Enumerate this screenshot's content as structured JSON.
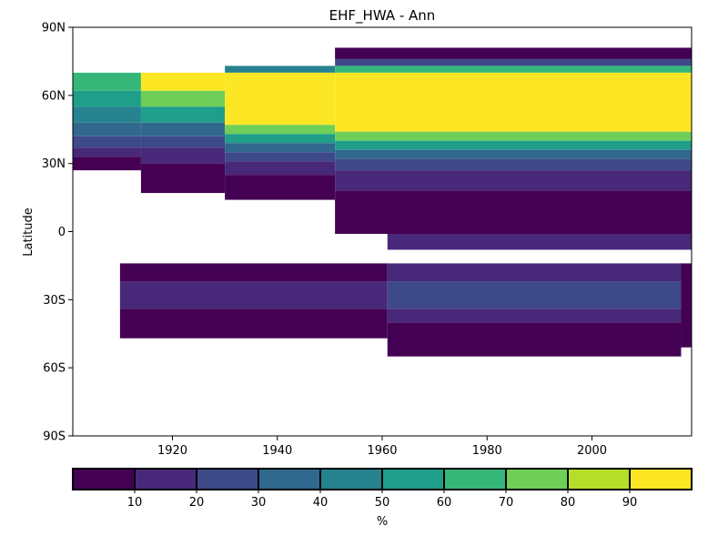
{
  "chart_data": {
    "type": "heatmap",
    "title": "EHF_HWA - Ann",
    "xlabel": "",
    "ylabel": "Latitude",
    "xlim": [
      1901,
      2019
    ],
    "ylim": [
      -90,
      90
    ],
    "xticks": [
      1920,
      1940,
      1960,
      1980,
      2000
    ],
    "yticks": [
      {
        "value": 90,
        "label": "90N"
      },
      {
        "value": 60,
        "label": "60N"
      },
      {
        "value": 30,
        "label": "30N"
      },
      {
        "value": 0,
        "label": "0"
      },
      {
        "value": -30,
        "label": "30S"
      },
      {
        "value": -60,
        "label": "60S"
      },
      {
        "value": -90,
        "label": "90S"
      }
    ],
    "grid": false,
    "colorbar": {
      "label": "%",
      "orientation": "horizontal",
      "position": "bottom",
      "ticks": [
        10,
        20,
        30,
        40,
        50,
        60,
        70,
        80,
        90
      ],
      "range": [
        0,
        100
      ],
      "colors": [
        "#440154",
        "#482878",
        "#3e4989",
        "#31688e",
        "#26828e",
        "#1f9e89",
        "#35b779",
        "#6ece58",
        "#b5de2b",
        "#fde725"
      ]
    },
    "regions": [
      {
        "x": [
          1901,
          1914
        ],
        "y": [
          27,
          70
        ],
        "bands": [
          [
            62,
            70,
            6
          ],
          [
            55,
            62,
            5
          ],
          [
            48,
            55,
            4
          ],
          [
            42,
            48,
            3
          ],
          [
            37,
            42,
            2
          ],
          [
            33,
            37,
            1
          ],
          [
            27,
            33,
            0
          ]
        ]
      },
      {
        "x": [
          1914,
          1930
        ],
        "y": [
          17,
          70
        ],
        "bands": [
          [
            62,
            70,
            9
          ],
          [
            55,
            62,
            7
          ],
          [
            48,
            55,
            5
          ],
          [
            42,
            48,
            3
          ],
          [
            37,
            42,
            2
          ],
          [
            30,
            37,
            1
          ],
          [
            17,
            30,
            0
          ]
        ]
      },
      {
        "x": [
          1930,
          1951
        ],
        "y": [
          14,
          73
        ],
        "bands": [
          [
            70,
            73,
            4
          ],
          [
            47,
            70,
            9
          ],
          [
            43,
            47,
            7
          ],
          [
            39,
            43,
            5
          ],
          [
            35,
            39,
            3
          ],
          [
            31,
            35,
            2
          ],
          [
            25,
            31,
            1
          ],
          [
            14,
            25,
            0
          ]
        ]
      },
      {
        "x": [
          1951,
          2019
        ],
        "y": [
          -1,
          81
        ],
        "bands": [
          [
            76,
            81,
            0
          ],
          [
            73,
            76,
            2
          ],
          [
            70,
            73,
            6
          ],
          [
            44,
            70,
            9
          ],
          [
            40,
            44,
            7
          ],
          [
            36,
            40,
            5
          ],
          [
            32,
            36,
            3
          ],
          [
            27,
            32,
            2
          ],
          [
            18,
            27,
            1
          ],
          [
            -1,
            18,
            0
          ]
        ]
      },
      {
        "x": [
          1961,
          2019
        ],
        "y": [
          -8,
          -1
        ],
        "bands": [
          [
            -8,
            -1,
            1
          ]
        ]
      },
      {
        "x": [
          1910,
          1961
        ],
        "y": [
          -47,
          -14
        ],
        "bands": [
          [
            -22,
            -14,
            0
          ],
          [
            -34,
            -22,
            1
          ],
          [
            -47,
            -34,
            0
          ]
        ]
      },
      {
        "x": [
          1961,
          2017
        ],
        "y": [
          -55,
          -14
        ],
        "bands": [
          [
            -22,
            -14,
            1
          ],
          [
            -34,
            -22,
            2
          ],
          [
            -40,
            -34,
            1
          ],
          [
            -55,
            -40,
            0
          ]
        ]
      },
      {
        "x": [
          2017,
          2019
        ],
        "y": [
          -51,
          -14
        ],
        "bands": [
          [
            -51,
            -14,
            0
          ]
        ]
      }
    ]
  }
}
